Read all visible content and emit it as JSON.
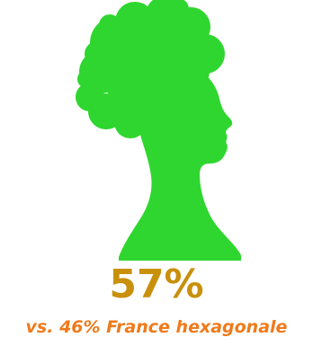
{
  "figure": {
    "icon": "woman-afro-profile-silhouette-icon",
    "color": "#2fd62f"
  },
  "stat": {
    "value": "57%",
    "value_color": "#c8900b",
    "comparison": "vs. 46% France hexagonale",
    "comparison_color": "#f07a1a"
  }
}
